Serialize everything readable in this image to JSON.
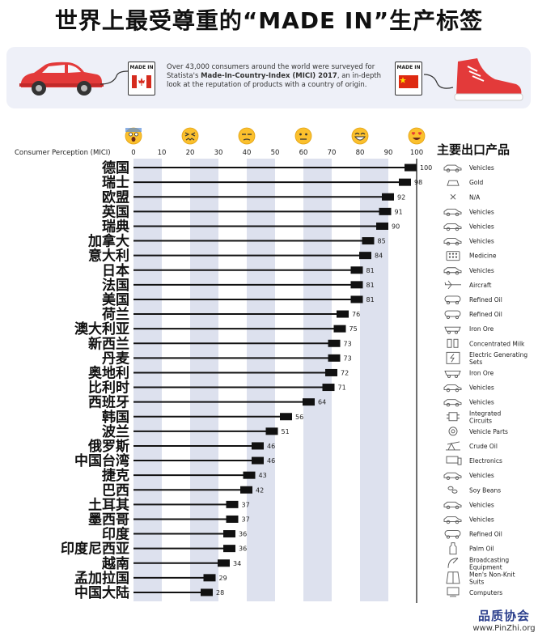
{
  "title": "世界上最受尊重的“MADE IN”生产标签",
  "banner": {
    "flag_label": "MADE IN",
    "description_pre": "Over 43,000 consumers around the world were surveyed for Statista's ",
    "description_bold": "Made-In-Country-Index (MICI) 2017",
    "description_post": ", an in-depth look at the reputation of products with a country of origin."
  },
  "watermark": {
    "name": "品质协会",
    "url": "www.PinZhi.org"
  },
  "colors": {
    "bar": "#111111",
    "band": "#dde1ee",
    "panel": "#eef0f8",
    "flag_red": "#d52b1e",
    "china_red": "#de2910",
    "car_red": "#e33a3a"
  },
  "chart_data": {
    "type": "bar",
    "orientation": "horizontal",
    "xlabel": "Consumer Perception (MICI)",
    "xlim": [
      0,
      100
    ],
    "xticks": [
      0,
      10,
      20,
      30,
      40,
      50,
      60,
      70,
      80,
      90,
      100
    ],
    "tick_emojis": [
      "scared",
      "confounded",
      "unamused",
      "neutral",
      "grinning",
      "heart-eyes"
    ],
    "right_header": "主要出口产品",
    "rows": [
      {
        "country": "德国",
        "value": 100,
        "product": "Vehicles",
        "icon": "car"
      },
      {
        "country": "瑞士",
        "value": 98,
        "product": "Gold",
        "icon": "gold"
      },
      {
        "country": "欧盟",
        "value": 92,
        "product": "N/A",
        "icon": "cross"
      },
      {
        "country": "英国",
        "value": 91,
        "product": "Vehicles",
        "icon": "car"
      },
      {
        "country": "瑞典",
        "value": 90,
        "product": "Vehicles",
        "icon": "car"
      },
      {
        "country": "加拿大",
        "value": 85,
        "product": "Vehicles",
        "icon": "car"
      },
      {
        "country": "意大利",
        "value": 84,
        "product": "Medicine",
        "icon": "medicine"
      },
      {
        "country": "日本",
        "value": 81,
        "product": "Vehicles",
        "icon": "car"
      },
      {
        "country": "法国",
        "value": 81,
        "product": "Aircraft",
        "icon": "plane"
      },
      {
        "country": "美国",
        "value": 81,
        "product": "Refined Oil",
        "icon": "tanker"
      },
      {
        "country": "荷兰",
        "value": 76,
        "product": "Refined Oil",
        "icon": "tanker"
      },
      {
        "country": "澳大利亚",
        "value": 75,
        "product": "Iron Ore",
        "icon": "ore"
      },
      {
        "country": "新西兰",
        "value": 73,
        "product": "Concentrated Milk",
        "icon": "milk"
      },
      {
        "country": "丹麦",
        "value": 73,
        "product": "Electric Generating Sets",
        "icon": "power"
      },
      {
        "country": "奥地利",
        "value": 72,
        "product": "Iron Ore",
        "icon": "ore"
      },
      {
        "country": "比利时",
        "value": 71,
        "product": "Vehicles",
        "icon": "car"
      },
      {
        "country": "西班牙",
        "value": 64,
        "product": "Vehicles",
        "icon": "car"
      },
      {
        "country": "韩国",
        "value": 56,
        "product": "Integrated Circuits",
        "icon": "chip"
      },
      {
        "country": "波兰",
        "value": 51,
        "product": "Vehicle Parts",
        "icon": "gear"
      },
      {
        "country": "俄罗斯",
        "value": 46,
        "product": "Crude Oil",
        "icon": "oil-pump"
      },
      {
        "country": "中国台湾",
        "value": 46,
        "product": "Electronics",
        "icon": "electronics"
      },
      {
        "country": "捷克",
        "value": 43,
        "product": "Vehicles",
        "icon": "car"
      },
      {
        "country": "巴西",
        "value": 42,
        "product": "Soy Beans",
        "icon": "soy"
      },
      {
        "country": "土耳其",
        "value": 37,
        "product": "Vehicles",
        "icon": "car"
      },
      {
        "country": "墨西哥",
        "value": 37,
        "product": "Vehicles",
        "icon": "car"
      },
      {
        "country": "印度",
        "value": 36,
        "product": "Refined Oil",
        "icon": "tanker"
      },
      {
        "country": "印度尼西亚",
        "value": 36,
        "product": "Palm Oil",
        "icon": "bottle"
      },
      {
        "country": "越南",
        "value": 34,
        "product": "Broadcasting Equipment",
        "icon": "satellite"
      },
      {
        "country": "孟加拉国",
        "value": 29,
        "product": "Men's Non-Knit Suits",
        "icon": "suit"
      },
      {
        "country": "中国大陆",
        "value": 28,
        "product": "Computers",
        "icon": "computer"
      }
    ]
  }
}
